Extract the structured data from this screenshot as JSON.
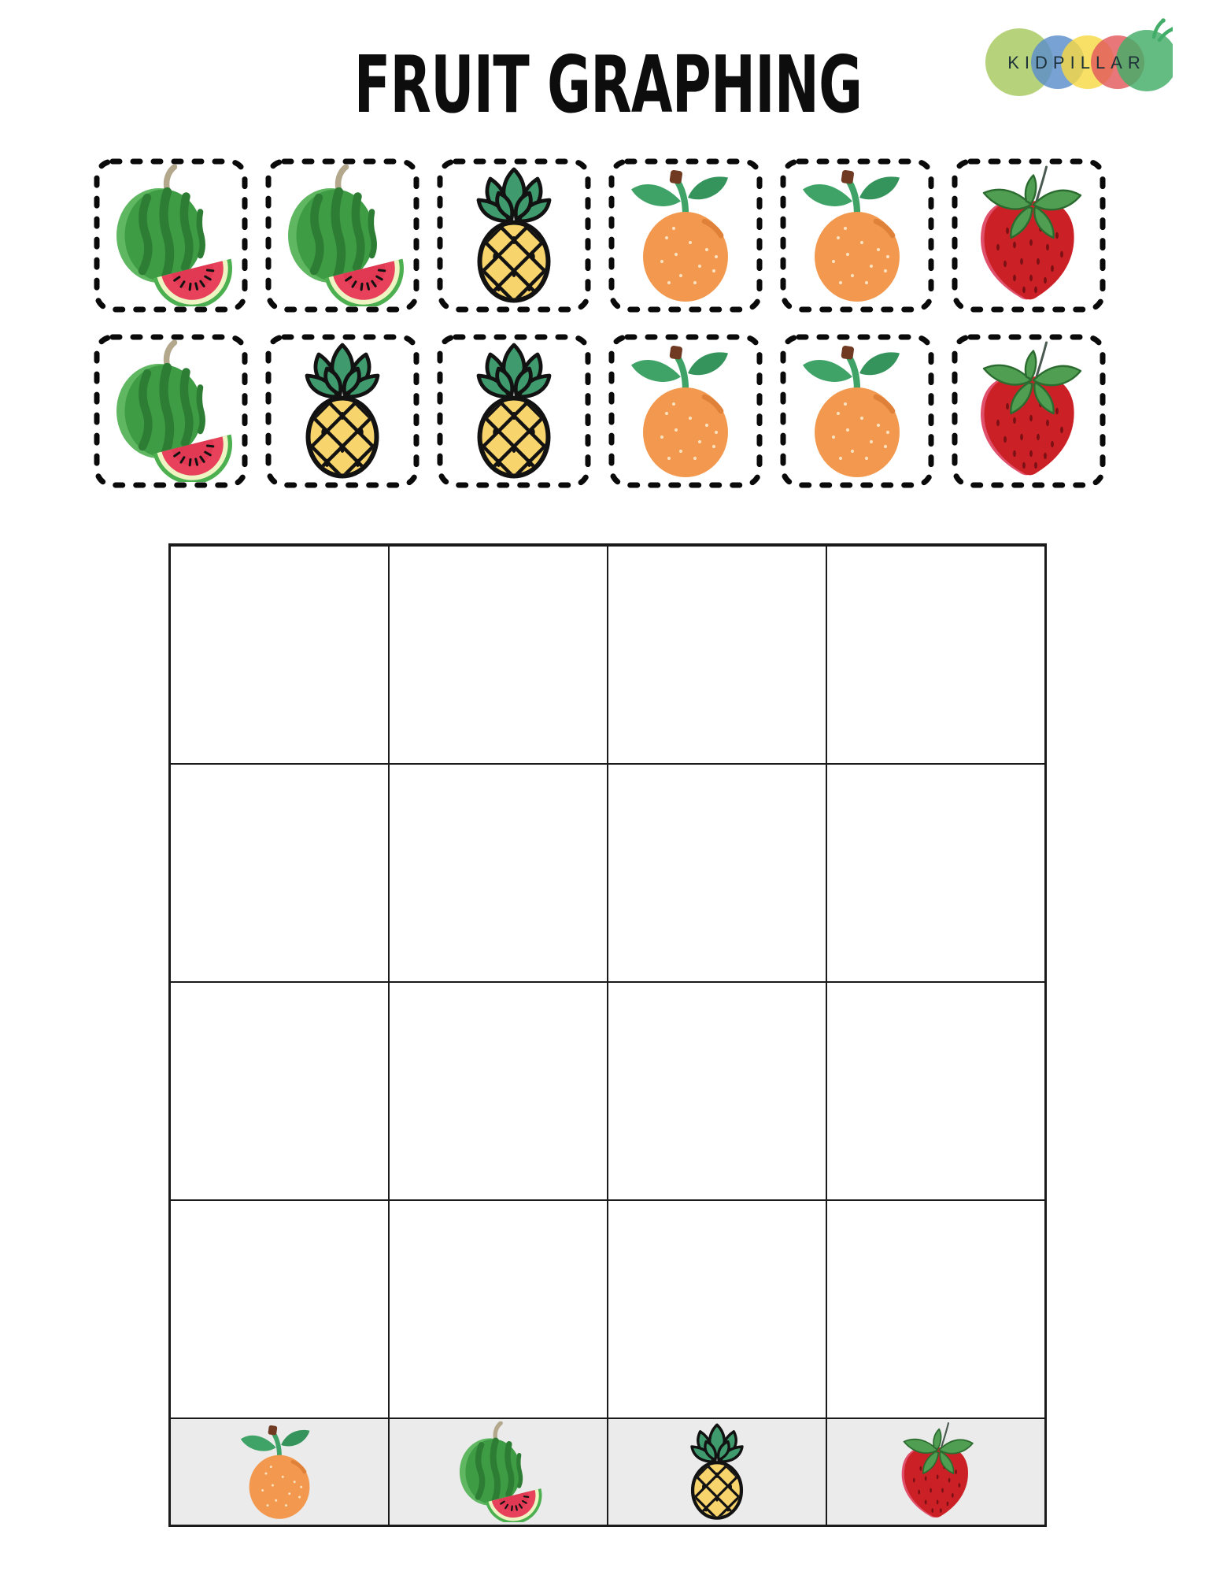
{
  "page": {
    "title": "FRUIT GRAPHING",
    "background": "#ffffff"
  },
  "logo": {
    "text": "KIDPILLAR",
    "text_color": "#1c3038",
    "circle_colors": [
      "#a6c85d",
      "#5b8ecb",
      "#f6d945",
      "#e2595c",
      "#42ad68"
    ]
  },
  "instruction_cards": {
    "rows": [
      {
        "fruits": [
          "watermelon",
          "watermelon",
          "pineapple",
          "orange",
          "orange",
          "strawberry"
        ]
      },
      {
        "fruits": [
          "watermelon",
          "pineapple",
          "pineapple",
          "orange",
          "orange",
          "strawberry"
        ]
      }
    ]
  },
  "graph": {
    "empty_row_count": 4,
    "column_labels": [
      "orange",
      "watermelon",
      "pineapple",
      "strawberry"
    ],
    "label_row_background": "#ebebeb",
    "grid_line_color": "#1a1a1a"
  },
  "fruit_palette": {
    "watermelon_green": "#3e9c44",
    "watermelon_light_green": "#5fb761",
    "watermelon_dark_stripe": "#2e7d34",
    "watermelon_flesh": "#e8415c",
    "watermelon_rind": "#eef5c3",
    "pineapple_yellow": "#f8d46d",
    "pineapple_crown_green": "#3f9b6d",
    "pineapple_outline": "#121212",
    "orange_body": "#f2994f",
    "orange_leaf_green": "#3fa367",
    "strawberry_red": "#cb2026",
    "strawberry_leaf_green": "#4f9e52"
  }
}
